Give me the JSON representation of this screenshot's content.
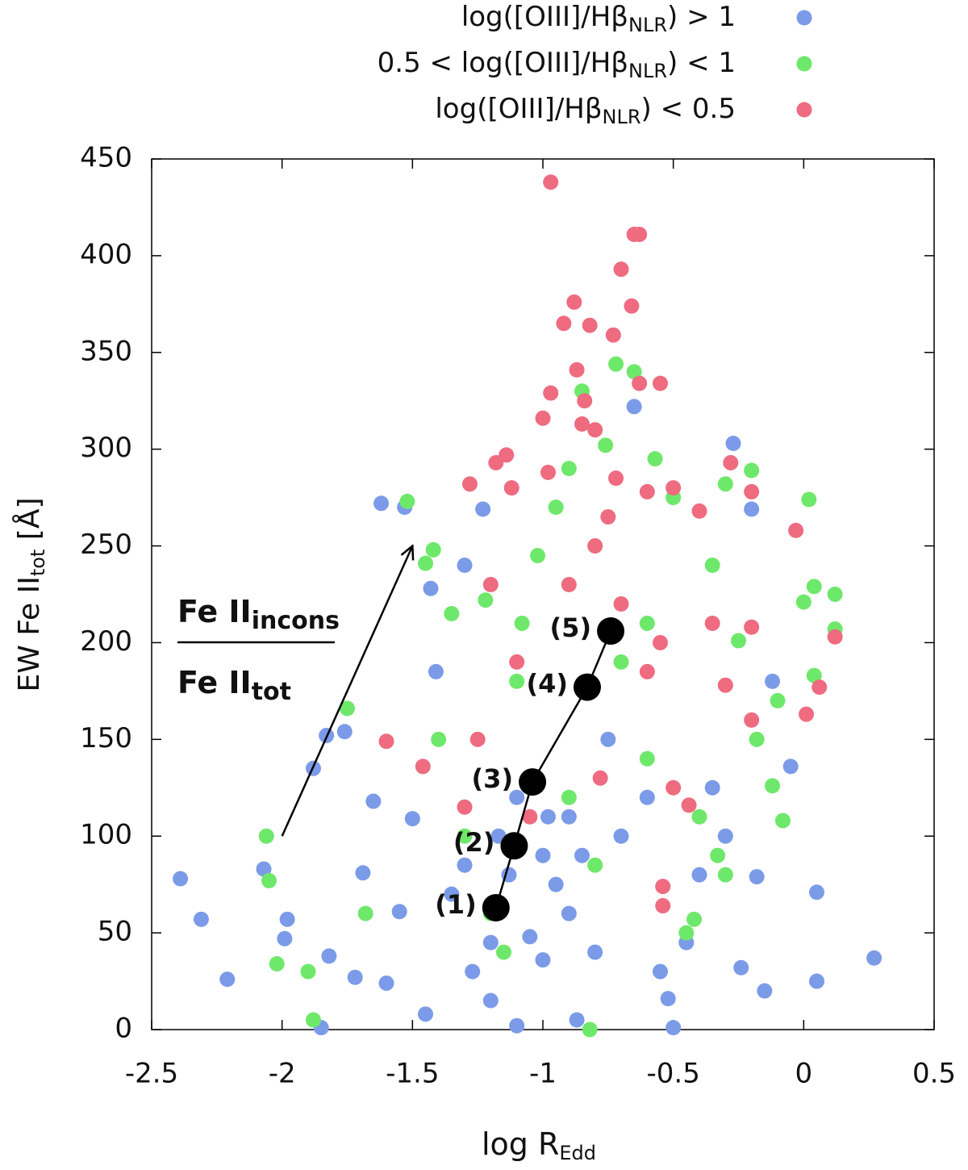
{
  "chart_data": {
    "type": "scatter",
    "x_label": [
      "log R",
      "Edd"
    ],
    "y_label": [
      "EW Fe II",
      "tot",
      " [Å]"
    ],
    "xlim": [
      -2.5,
      0.5
    ],
    "xticks": [
      -2.5,
      -2,
      -1.5,
      -1,
      -0.5,
      0,
      0.5
    ],
    "ylim": [
      0,
      450
    ],
    "yticks": [
      0,
      50,
      100,
      150,
      200,
      250,
      300,
      350,
      400,
      450
    ],
    "grid": false,
    "legend": "top-right",
    "series": [
      {
        "name": [
          "log([OIII]/Hβ",
          "NLR",
          ") > 1"
        ],
        "color": "#7b9be8",
        "x": [
          -2.39,
          -2.31,
          -2.21,
          -2.07,
          -1.99,
          -1.98,
          -1.88,
          -1.85,
          -1.83,
          -1.82,
          -1.76,
          -1.72,
          -1.69,
          -1.65,
          -1.62,
          -1.53,
          -1.6,
          -1.55,
          -1.5,
          -1.45,
          -1.43,
          -1.41,
          -1.35,
          -1.3,
          -1.27,
          -1.23,
          -1.2,
          -1.17,
          -1.13,
          -1.1,
          -1.05,
          -1.0,
          -0.98,
          -0.95,
          -0.9,
          -0.87,
          -0.85,
          -0.8,
          -0.75,
          -0.7,
          -0.65,
          -0.6,
          -0.55,
          -0.52,
          -0.5,
          -0.45,
          -0.4,
          -0.35,
          -0.3,
          -0.27,
          -0.2,
          -0.15,
          -0.12,
          -0.05,
          0.05,
          0.05,
          0.27,
          -0.24,
          -0.18,
          -1.0,
          -1.1,
          -1.3,
          -0.9,
          -1.2
        ],
        "values": [
          78,
          57,
          26,
          83,
          47,
          57,
          135,
          1,
          152,
          38,
          154,
          27,
          81,
          118,
          272,
          270,
          24,
          61,
          109,
          8,
          228,
          185,
          70,
          240,
          30,
          269,
          15,
          100,
          80,
          2,
          48,
          36,
          110,
          75,
          60,
          5,
          90,
          40,
          150,
          100,
          322,
          120,
          30,
          16,
          1,
          45,
          80,
          125,
          100,
          303,
          269,
          20,
          180,
          136,
          71,
          25,
          37,
          32,
          79,
          90,
          120,
          85,
          110,
          45
        ]
      },
      {
        "name": [
          "0.5 < log([OIII]/Hβ",
          "NLR",
          ") < 1"
        ],
        "color": "#6ee86a",
        "x": [
          -2.06,
          -2.05,
          -2.02,
          -1.9,
          -1.88,
          -1.75,
          -1.68,
          -1.52,
          -1.45,
          -1.42,
          -1.35,
          -1.3,
          -1.22,
          -1.2,
          -1.15,
          -1.08,
          -1.02,
          -0.95,
          -0.9,
          -0.85,
          -0.82,
          -0.8,
          -0.76,
          -0.72,
          -0.65,
          -0.6,
          -0.57,
          -0.5,
          -0.45,
          -0.42,
          -0.35,
          -0.3,
          -0.25,
          -0.2,
          -0.18,
          -0.12,
          -0.1,
          -0.08,
          0.0,
          0.02,
          0.04,
          0.12,
          0.12,
          -1.4,
          -1.1,
          -0.7,
          -0.6,
          -0.4,
          -0.9,
          -0.33,
          -0.3,
          0.04
        ],
        "values": [
          100,
          77,
          34,
          30,
          5,
          166,
          60,
          273,
          241,
          248,
          215,
          100,
          222,
          60,
          40,
          210,
          245,
          270,
          290,
          330,
          0,
          85,
          302,
          344,
          340,
          210,
          295,
          275,
          50,
          57,
          240,
          282,
          201,
          289,
          150,
          126,
          170,
          108,
          221,
          274,
          229,
          225,
          207,
          150,
          180,
          190,
          140,
          110,
          120,
          90,
          80,
          183
        ]
      },
      {
        "name": [
          "log([OIII]/Hβ",
          "NLR",
          ") < 0.5"
        ],
        "color": "#ee6b80",
        "x": [
          -0.97,
          -0.63,
          -0.65,
          -0.7,
          -0.88,
          -0.92,
          -0.82,
          -0.73,
          -0.66,
          -0.87,
          -0.63,
          -0.55,
          -0.97,
          -0.84,
          -1.0,
          -0.85,
          -0.8,
          -1.28,
          -1.18,
          -1.14,
          -1.12,
          -0.98,
          -0.72,
          -0.6,
          -0.5,
          -0.4,
          -0.28,
          -0.2,
          -0.03,
          0.01,
          0.06,
          -1.3,
          -1.46,
          -1.6,
          -1.2,
          -1.1,
          -0.9,
          -0.8,
          -0.75,
          -0.7,
          -0.6,
          -0.55,
          -0.5,
          -0.44,
          -0.35,
          -0.3,
          -0.2,
          -0.2,
          -0.54,
          -0.54,
          -1.25,
          -1.05,
          -0.78,
          0.12
        ],
        "values": [
          438,
          411,
          411,
          393,
          376,
          365,
          364,
          359,
          374,
          341,
          334,
          334,
          329,
          325,
          316,
          313,
          310,
          282,
          293,
          297,
          280,
          288,
          285,
          278,
          280,
          268,
          293,
          278,
          258,
          163,
          177,
          115,
          136,
          149,
          230,
          190,
          230,
          250,
          265,
          220,
          185,
          200,
          125,
          116,
          210,
          178,
          160,
          208,
          74,
          64,
          150,
          110,
          130,
          203
        ]
      }
    ],
    "trend": {
      "color": "#000000",
      "x": [
        -1.18,
        -1.11,
        -1.04,
        -0.83,
        -0.74
      ],
      "values": [
        63,
        95,
        128,
        177,
        206
      ],
      "labels": [
        "(1)",
        "(2)",
        "(3)",
        "(4)",
        "(5)"
      ]
    },
    "arrow": {
      "x": [
        -2,
        -1.5
      ],
      "y": [
        100,
        250
      ]
    },
    "annotation": {
      "numerator": [
        "Fe II",
        "incons"
      ],
      "denominator": [
        "Fe II",
        "tot"
      ]
    }
  }
}
